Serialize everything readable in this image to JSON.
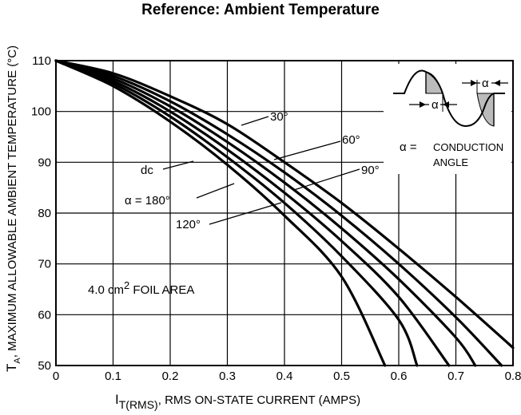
{
  "chart_data": {
    "type": "line",
    "title": "Reference: Ambient Temperature",
    "xlabel": {
      "main": "I",
      "sub": "T(RMS)",
      "rest": ", RMS ON-STATE CURRENT (AMPS)"
    },
    "ylabel": {
      "main": "T",
      "sub": "A",
      "rest": ", MAXIMUM ALLOWABLE AMBIENT TEMPERATURE (°C)"
    },
    "xlim": [
      0,
      0.8
    ],
    "ylim": [
      50,
      110
    ],
    "xticks": [
      "0",
      "0.1",
      "0.2",
      "0.3",
      "0.4",
      "0.5",
      "0.6",
      "0.7",
      "0.8"
    ],
    "yticks": [
      "50",
      "60",
      "70",
      "80",
      "90",
      "100",
      "110"
    ],
    "grid": true,
    "series": [
      {
        "name": "30°",
        "x": [
          0,
          0.1,
          0.2,
          0.3,
          0.4,
          0.5,
          0.6,
          0.7,
          0.8
        ],
        "y": [
          110,
          107.5,
          103,
          97.5,
          90,
          82,
          73,
          63.5,
          53.5
        ]
      },
      {
        "name": "60°",
        "x": [
          0,
          0.1,
          0.2,
          0.3,
          0.4,
          0.5,
          0.6,
          0.7,
          0.78
        ],
        "y": [
          110,
          107,
          102,
          95.5,
          88,
          79.5,
          70,
          59.5,
          50
        ]
      },
      {
        "name": "90°",
        "x": [
          0,
          0.1,
          0.2,
          0.3,
          0.4,
          0.5,
          0.6,
          0.7,
          0.734
        ],
        "y": [
          110,
          106.5,
          101,
          94,
          86,
          77,
          67,
          55.5,
          50
        ]
      },
      {
        "name": "120°",
        "x": [
          0,
          0.1,
          0.2,
          0.3,
          0.4,
          0.5,
          0.6,
          0.688
        ],
        "y": [
          110,
          106,
          100,
          92.5,
          84,
          74.5,
          63.5,
          50
        ]
      },
      {
        "name": "α = 180°",
        "x": [
          0,
          0.1,
          0.2,
          0.3,
          0.4,
          0.5,
          0.6,
          0.632
        ],
        "y": [
          110,
          105.5,
          99,
          91,
          82,
          71.5,
          59,
          50
        ]
      },
      {
        "name": "dc",
        "x": [
          0,
          0.1,
          0.2,
          0.3,
          0.4,
          0.5,
          0.576
        ],
        "y": [
          110,
          105,
          98,
          89.5,
          79.5,
          67.5,
          50
        ]
      }
    ],
    "annotations": {
      "foil": {
        "text": "4.0 cm",
        "sup": "2",
        "rest": " FOIL AREA"
      },
      "alpha_eq": "α =",
      "conduction": "CONDUCTION",
      "angle": "ANGLE",
      "alpha": "α"
    }
  }
}
